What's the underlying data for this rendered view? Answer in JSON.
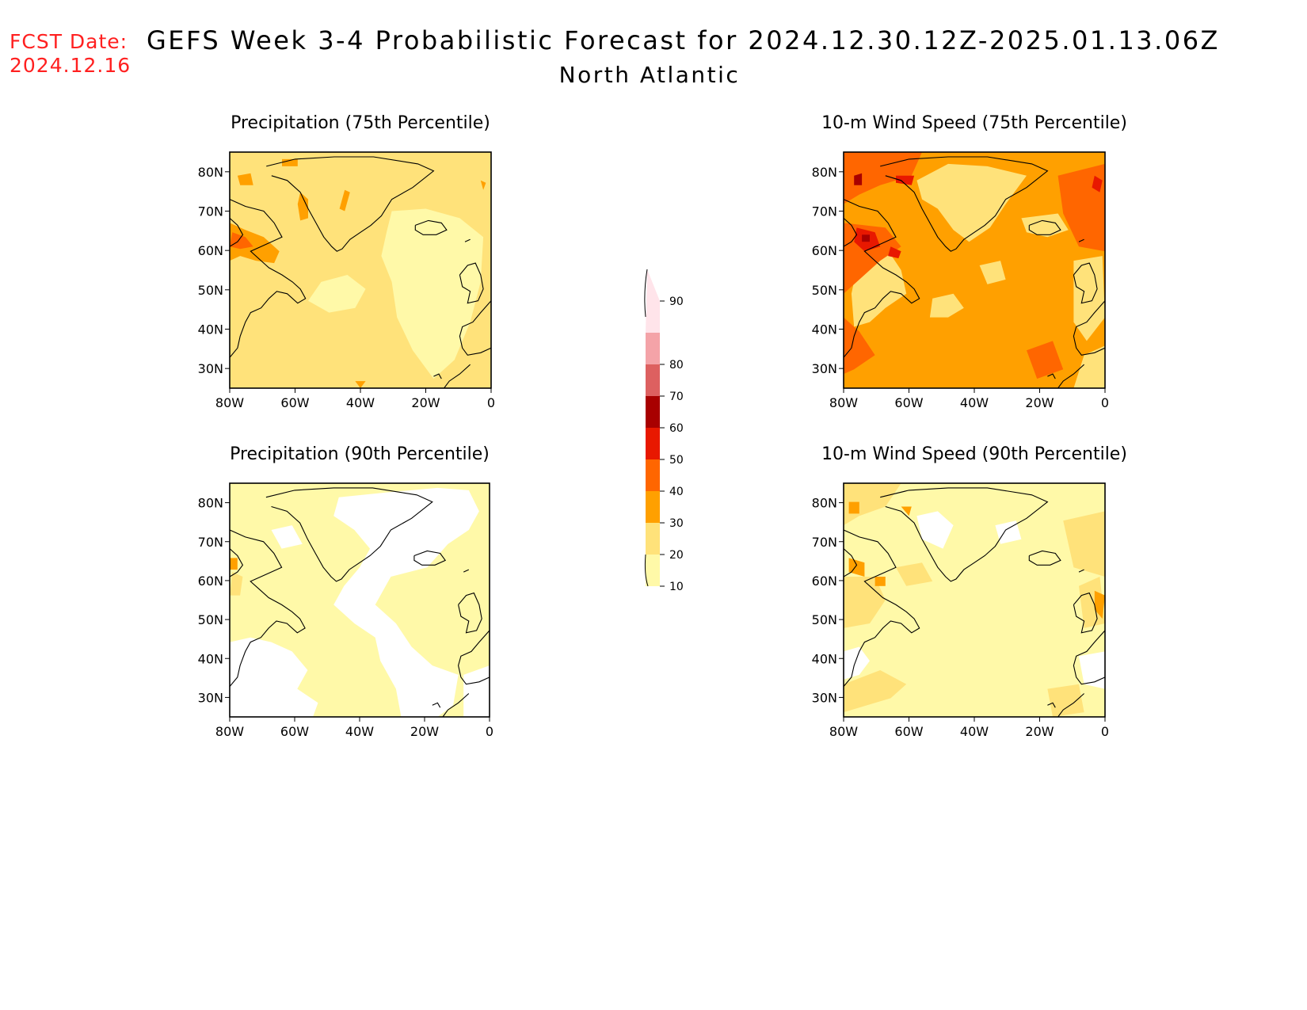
{
  "header": {
    "fcst_label": "FCST Date:",
    "fcst_date": "2024.12.16",
    "title": "GEFS Week 3-4 Probabilistic Forecast for 2024.12.30.12Z-2025.01.13.06Z",
    "subtitle": "North Atlantic"
  },
  "panels": [
    {
      "title": "Precipitation (75th Percentile)",
      "field": "precip-75",
      "background": "#ffe27a"
    },
    {
      "title": "10-m Wind Speed (75th Percentile)",
      "field": "wind-75",
      "background": "#ffa000"
    },
    {
      "title": "Precipitation (90th Percentile)",
      "field": "precip-90",
      "background": "#fff9a8"
    },
    {
      "title": "10-m Wind Speed (90th Percentile)",
      "field": "wind-90",
      "background": "#fff9a8"
    }
  ],
  "axes": {
    "lat_ticks": [
      "80N",
      "70N",
      "60N",
      "50N",
      "40N",
      "30N"
    ],
    "lon_ticks": [
      "80W",
      "60W",
      "40W",
      "20W",
      "0"
    ],
    "lat_range": [
      25,
      85
    ],
    "lon_range": [
      -80,
      0
    ]
  },
  "colorbar": {
    "bins": [
      {
        "label": "10",
        "color": "#fff9a8"
      },
      {
        "label": "20",
        "color": "#ffe27a"
      },
      {
        "label": "30",
        "color": "#ffa000"
      },
      {
        "label": "40",
        "color": "#ff6600"
      },
      {
        "label": "50",
        "color": "#e81800"
      },
      {
        "label": "60",
        "color": "#a80000"
      },
      {
        "label": "70",
        "color": "#dd6060"
      },
      {
        "label": "80",
        "color": "#f4a3a8"
      },
      {
        "label": "90",
        "color": "#ffe4ea"
      }
    ]
  }
}
